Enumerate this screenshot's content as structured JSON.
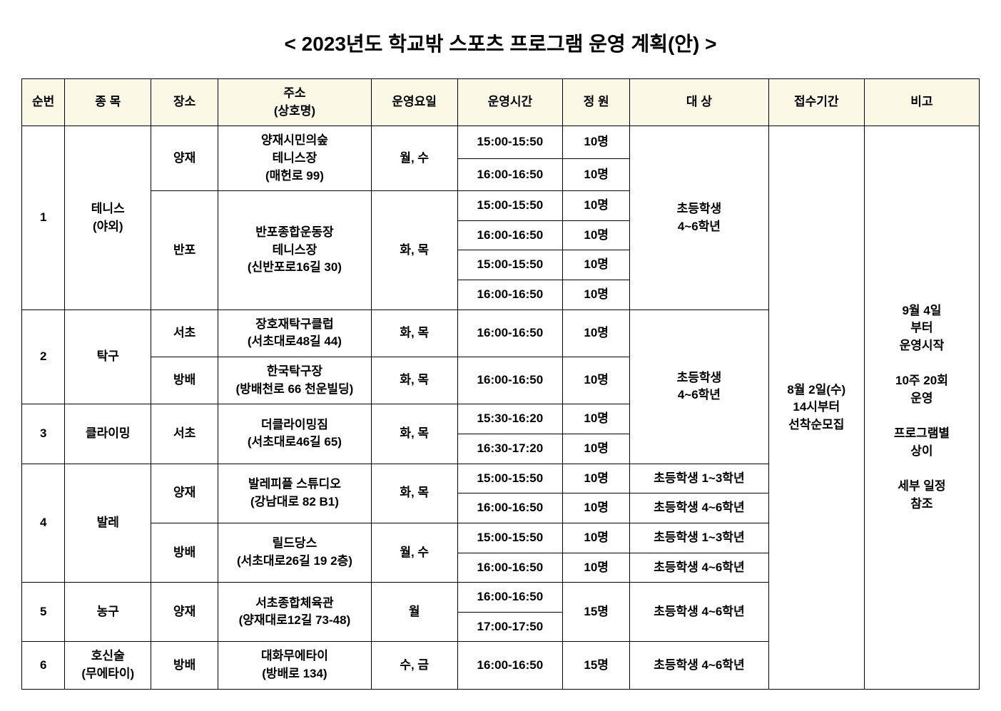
{
  "title": "< 2023년도 학교밖 스포츠 프로그램 운영 계획(안) >",
  "headers": {
    "num": "순번",
    "sport": "종 목",
    "place": "장소",
    "address": "주소\n(상호명)",
    "days": "운영요일",
    "time": "운영시간",
    "capacity": "정 원",
    "target": "대 상",
    "registration": "접수기간",
    "note": "비고"
  },
  "registration_text": "8월 2일(수)\n14시부터\n선착순모집",
  "note_text": "9월 4일\n부터\n운영시작\n\n10주 20회\n운영\n\n프로그램별\n상이\n\n세부 일정\n참조",
  "rows": {
    "r1": {
      "num": "1",
      "sport": "테니스\n(야외)",
      "place1": "양재",
      "addr1": "양재시민의숲\n테니스장\n(매헌로 99)",
      "days1": "월, 수",
      "place2": "반포",
      "addr2": "반포종합운동장\n테니스장\n(신반포로16길 30)",
      "days2": "화, 목",
      "t1": "15:00-15:50",
      "c1": "10명",
      "t2": "16:00-16:50",
      "c2": "10명",
      "t3": "15:00-15:50",
      "c3": "10명",
      "t4": "16:00-16:50",
      "c4": "10명",
      "t5": "15:00-15:50",
      "c5": "10명",
      "t6": "16:00-16:50",
      "c6": "10명",
      "target": "초등학생\n4~6학년"
    },
    "r2": {
      "num": "2",
      "sport": "탁구",
      "place1": "서초",
      "addr1": "장호재탁구클럽\n(서초대로48길 44)",
      "days1": "화, 목",
      "t1": "16:00-16:50",
      "c1": "10명",
      "place2": "방배",
      "addr2": "한국탁구장\n(방배천로 66 천운빌딩)",
      "days2": "화, 목",
      "t2": "16:00-16:50",
      "c2": "10명"
    },
    "r2r3target": "초등학생\n4~6학년",
    "r3": {
      "num": "3",
      "sport": "클라이밍",
      "place": "서초",
      "addr": "더클라이밍짐\n(서초대로46길 65)",
      "days": "화, 목",
      "t1": "15:30-16:20",
      "c1": "10명",
      "t2": "16:30-17:20",
      "c2": "10명"
    },
    "r4": {
      "num": "4",
      "sport": "발레",
      "place1": "양재",
      "addr1": "발레피플 스튜디오\n(강남대로 82 B1)",
      "days1": "화, 목",
      "t1": "15:00-15:50",
      "c1": "10명",
      "tg1": "초등학생 1~3학년",
      "t2": "16:00-16:50",
      "c2": "10명",
      "tg2": "초등학생 4~6학년",
      "place2": "방배",
      "addr2": "릴드당스\n(서초대로26길 19 2층)",
      "days2": "월, 수",
      "t3": "15:00-15:50",
      "c3": "10명",
      "tg3": "초등학생 1~3학년",
      "t4": "16:00-16:50",
      "c4": "10명",
      "tg4": "초등학생 4~6학년"
    },
    "r5": {
      "num": "5",
      "sport": "농구",
      "place": "양재",
      "addr": "서초종합체육관\n(양재대로12길 73-48)",
      "days": "월",
      "t1": "16:00-16:50",
      "t2": "17:00-17:50",
      "cap": "15명",
      "target": "초등학생 4~6학년"
    },
    "r6": {
      "num": "6",
      "sport": "호신술\n(무에타이)",
      "place": "방배",
      "addr": "대화무에타이\n(방배로 134)",
      "days": "수, 금",
      "time": "16:00-16:50",
      "cap": "15명",
      "target": "초등학생 4~6학년"
    }
  }
}
